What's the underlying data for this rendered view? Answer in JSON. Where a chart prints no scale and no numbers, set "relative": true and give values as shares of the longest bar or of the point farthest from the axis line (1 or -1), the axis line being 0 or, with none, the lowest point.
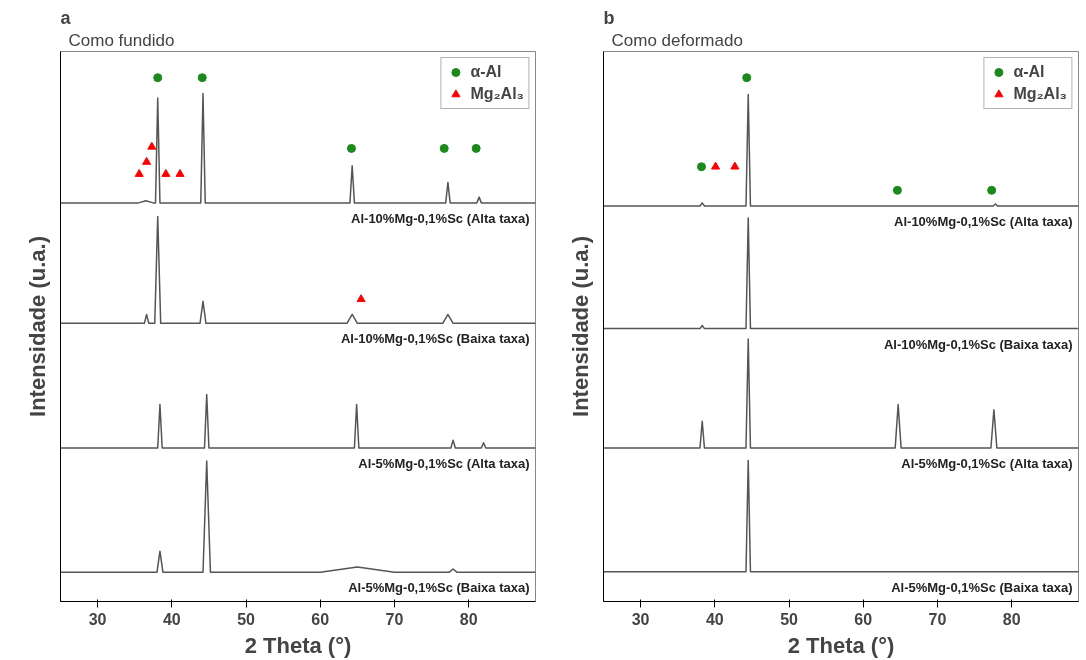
{
  "chart_data": [
    {
      "type": "line",
      "title": "a",
      "subtitle": "Como fundido",
      "xlabel": "2 Theta (°)",
      "ylabel": "Intensidade (u.a.)",
      "relative": true,
      "xlim": [
        25,
        89
      ],
      "xticks": [
        30,
        40,
        50,
        60,
        70,
        80
      ],
      "grid": false,
      "legend": "top right",
      "marker": "none",
      "line_style": "solid",
      "series": [
        {
          "name": "Al-10%Mg-0,1%Sc (Alta taxa)",
          "color": "#555555",
          "x": [
            25,
            35.5,
            36.5,
            37.5,
            37.8,
            38.1,
            38.4,
            43.9,
            44.2,
            44.5,
            64.0,
            64.3,
            64.6,
            76.9,
            77.2,
            77.5,
            81.1,
            81.4,
            81.7,
            89
          ],
          "values": [
            0.761,
            0.761,
            0.765,
            0.761,
            0.761,
            0.961,
            0.761,
            0.761,
            0.97,
            0.761,
            0.761,
            0.832,
            0.761,
            0.761,
            0.8,
            0.761,
            0.761,
            0.772,
            0.761,
            0.761
          ]
        },
        {
          "name": "Al-10%Mg-0,1%Sc (Baixa taxa)",
          "color": "#555555",
          "x": [
            25,
            36.3,
            36.6,
            36.9,
            37.7,
            38.1,
            38.5,
            43.8,
            44.2,
            44.6,
            63.6,
            64.3,
            65.0,
            76.5,
            77.2,
            77.9,
            89
          ],
          "values": [
            0.531,
            0.531,
            0.548,
            0.531,
            0.531,
            0.735,
            0.531,
            0.531,
            0.573,
            0.531,
            0.531,
            0.548,
            0.531,
            0.531,
            0.548,
            0.531,
            0.531
          ]
        },
        {
          "name": "Al-5%Mg-0,1%Sc (Alta taxa)",
          "color": "#555555",
          "x": [
            25,
            38.1,
            38.4,
            38.7,
            44.4,
            44.7,
            45.0,
            64.6,
            64.9,
            65.2,
            77.6,
            77.9,
            78.2,
            81.7,
            82.0,
            82.3,
            89
          ],
          "values": [
            0.293,
            0.293,
            0.376,
            0.293,
            0.293,
            0.395,
            0.293,
            0.293,
            0.376,
            0.293,
            0.293,
            0.308,
            0.293,
            0.293,
            0.303,
            0.293,
            0.293
          ]
        },
        {
          "name": "Al-5%Mg-0,1%Sc (Baixa taxa)",
          "color": "#555555",
          "x": [
            25,
            38.0,
            38.4,
            38.8,
            44.2,
            44.7,
            45.2,
            60,
            65,
            70,
            77.4,
            77.9,
            78.4,
            89
          ],
          "values": [
            0.056,
            0.056,
            0.096,
            0.056,
            0.056,
            0.268,
            0.056,
            0.056,
            0.066,
            0.056,
            0.056,
            0.062,
            0.056,
            0.056
          ]
        },
        {
          "name": "α-Al",
          "type": "scatter",
          "marker": "circle",
          "color": "#1a8a1a",
          "x": [
            38.1,
            44.1,
            64.2,
            76.7,
            81.0
          ],
          "values": [
            1.0,
            1.0,
            0.865,
            0.865,
            0.865
          ]
        },
        {
          "name": "Mg₂Al₃",
          "type": "scatter",
          "marker": "triangle",
          "color": "#ff0000",
          "x": [
            35.6,
            36.6,
            37.3,
            39.2,
            41.1,
            65.5
          ],
          "values": [
            0.816,
            0.839,
            0.868,
            0.816,
            0.816,
            0.577
          ]
        }
      ]
    },
    {
      "type": "line",
      "title": "b",
      "subtitle": "Como deformado",
      "xlabel": "2 Theta (°)",
      "ylabel": "Intensidade (u.a.)",
      "relative": true,
      "xlim": [
        25,
        89
      ],
      "xticks": [
        30,
        40,
        50,
        60,
        70,
        80
      ],
      "grid": false,
      "legend": "top right",
      "marker": "none",
      "line_style": "solid",
      "series": [
        {
          "name": "Al-10%Mg-0,1%Sc (Alta taxa)",
          "color": "#555555",
          "x": [
            25,
            38.0,
            38.3,
            38.6,
            44.2,
            44.5,
            44.8,
            77.5,
            77.8,
            78.1,
            89
          ],
          "values": [
            0.755,
            0.755,
            0.761,
            0.755,
            0.755,
            0.968,
            0.755,
            0.755,
            0.759,
            0.755,
            0.755
          ]
        },
        {
          "name": "Al-10%Mg-0,1%Sc (Baixa taxa)",
          "color": "#555555",
          "x": [
            25,
            38.0,
            38.3,
            38.6,
            44.2,
            44.5,
            44.8,
            89
          ],
          "values": [
            0.521,
            0.521,
            0.527,
            0.521,
            0.521,
            0.732,
            0.521,
            0.521
          ]
        },
        {
          "name": "Al-5%Mg-0,1%Sc (Alta taxa)",
          "color": "#555555",
          "x": [
            25,
            38.0,
            38.3,
            38.6,
            44.2,
            44.5,
            44.8,
            64.3,
            64.7,
            65.1,
            77.2,
            77.6,
            78.0,
            89
          ],
          "values": [
            0.293,
            0.293,
            0.344,
            0.293,
            0.293,
            0.501,
            0.293,
            0.293,
            0.376,
            0.293,
            0.293,
            0.366,
            0.293,
            0.293
          ]
        },
        {
          "name": "Al-5%Mg-0,1%Sc (Baixa taxa)",
          "color": "#555555",
          "x": [
            25,
            44.2,
            44.5,
            44.8,
            89
          ],
          "values": [
            0.057,
            0.057,
            0.269,
            0.057,
            0.057
          ]
        },
        {
          "name": "α-Al",
          "type": "scatter",
          "marker": "circle",
          "color": "#1a8a1a",
          "x": [
            44.3,
            38.2,
            64.6,
            77.3
          ],
          "values": [
            1.0,
            0.83,
            0.785,
            0.785
          ]
        },
        {
          "name": "Mg₂Al₃",
          "type": "scatter",
          "marker": "triangle",
          "color": "#ff0000",
          "x": [
            40.1,
            42.7
          ],
          "values": [
            0.83,
            0.83
          ]
        }
      ]
    }
  ]
}
